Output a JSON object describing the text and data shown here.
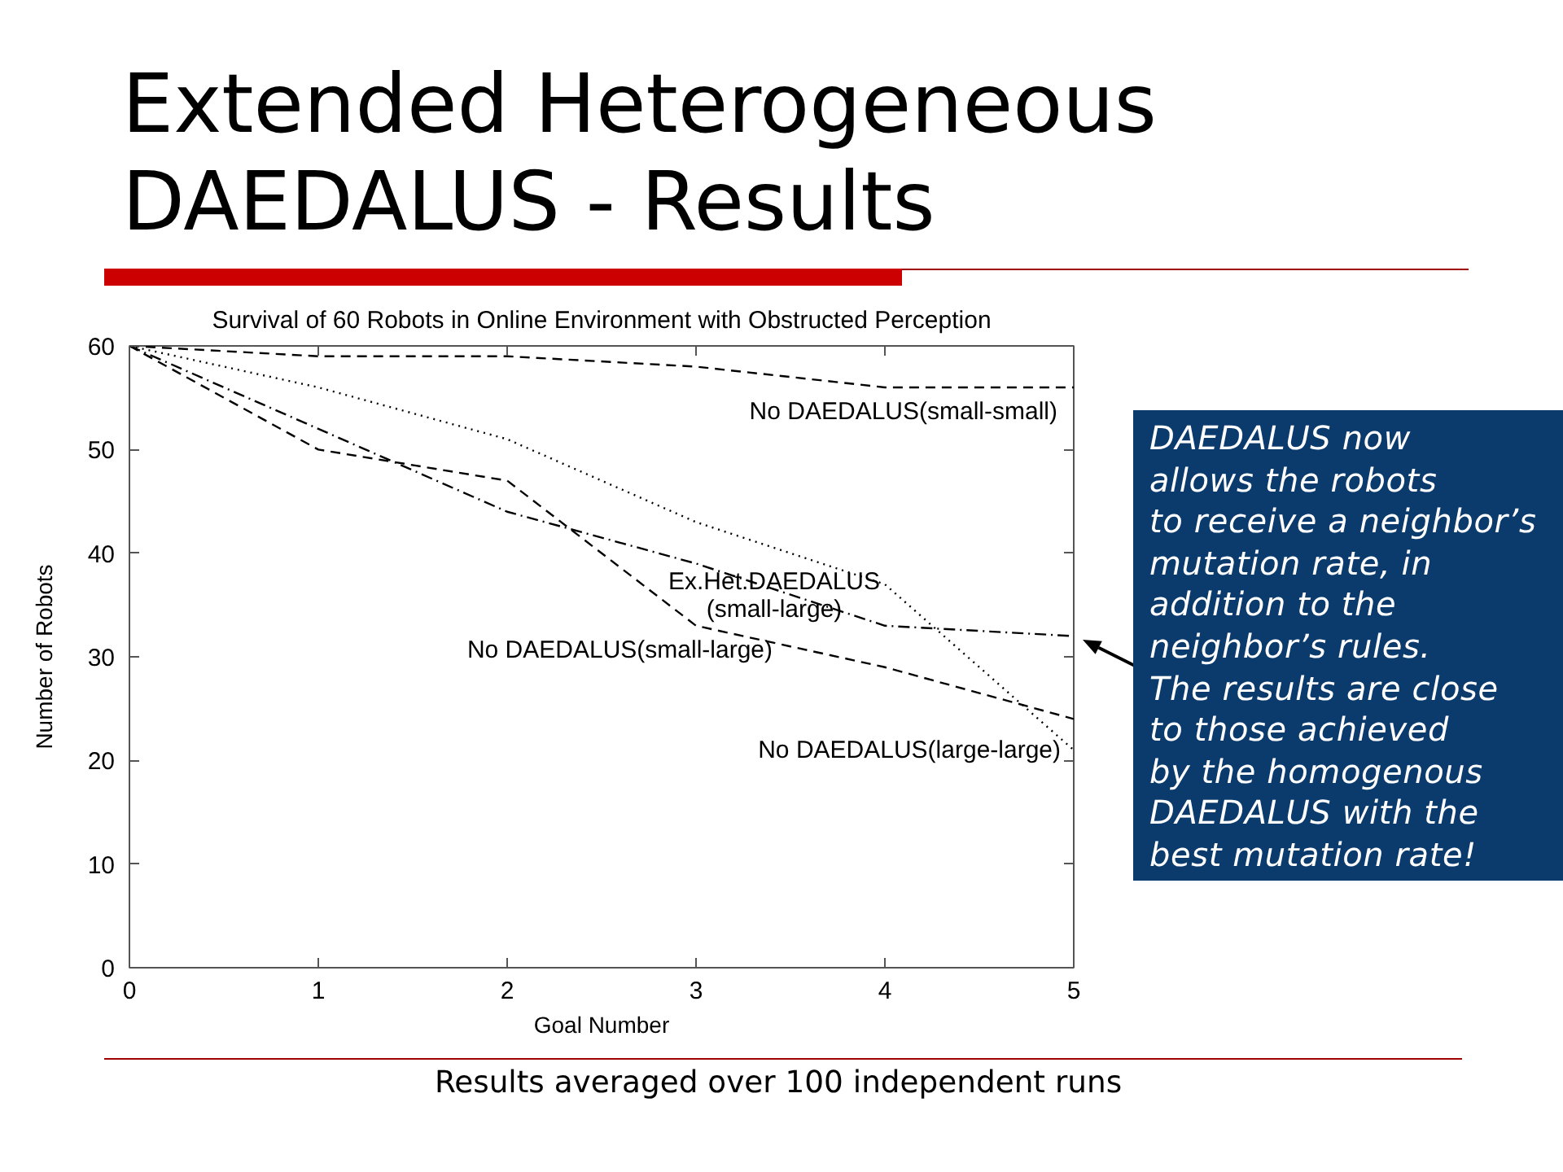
{
  "chart_data": {
    "type": "line",
    "title": "Extended Heterogeneous\nDAEDALUS - Results",
    "subtitle": "Survival of 60 Robots in Online Environment with Obstructed Perception",
    "xlabel": "Goal Number",
    "ylabel": "Number of Robots",
    "x": [
      0,
      1,
      2,
      3,
      4,
      5
    ],
    "xlim": [
      0,
      5
    ],
    "xticks": [
      0,
      1,
      2,
      3,
      4,
      5
    ],
    "ylim": [
      0,
      60
    ],
    "yticks": [
      0,
      10,
      20,
      30,
      40,
      50,
      60
    ],
    "grid": false,
    "series": [
      {
        "name": "No DAEDALUS(small-small)",
        "color": "#000000",
        "line_style": "dashed",
        "values": [
          60,
          59,
          59,
          58,
          56,
          56
        ]
      },
      {
        "name": "No DAEDALUS(large-large)",
        "color": "#000000",
        "line_style": "dotted",
        "values": [
          60,
          56,
          51,
          43,
          37,
          21
        ]
      },
      {
        "name": "Ex.Het.DAEDALUS\n(small-large)",
        "color": "#000000",
        "line_style": "dashdot",
        "values": [
          60,
          52,
          44,
          39,
          33,
          32
        ]
      },
      {
        "name": "No DAEDALUS(small-large)",
        "color": "#000000",
        "line_style": "dashed",
        "values": [
          60,
          50,
          47,
          33,
          29,
          24
        ]
      }
    ],
    "annotations": [
      "DAEDALUS now\nallows the robots\nto receive a neighbor’s\nmutation rate, in\naddition to the\nneighbor’s rules.\nThe results are close\nto those achieved\nby the homogenous\nDAEDALUS with the\nbest mutation rate!",
      "Results averaged over 100 independent runs"
    ]
  }
}
